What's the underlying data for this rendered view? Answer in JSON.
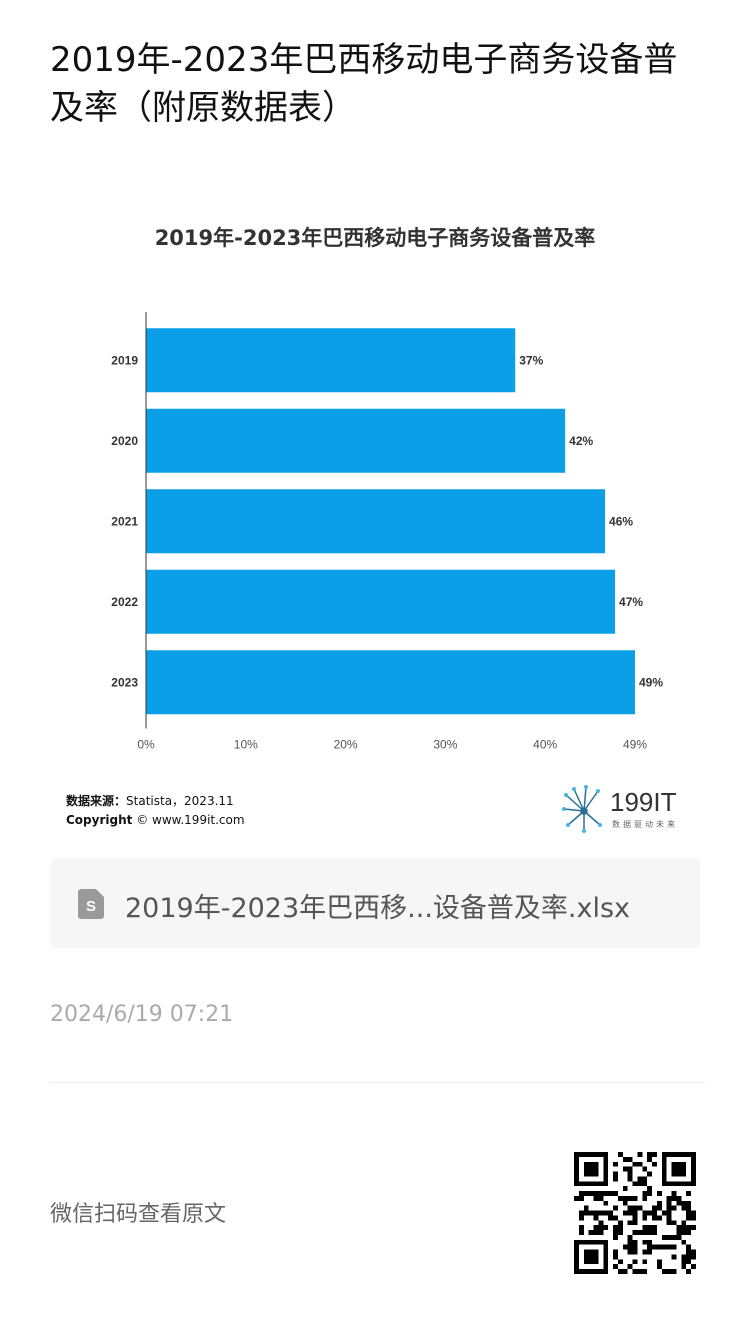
{
  "page": {
    "title": "2019年-2023年巴西移动电子商务设备普及率（附原数据表）"
  },
  "chart_data": {
    "type": "bar",
    "orientation": "horizontal",
    "title": "2019年-2023年巴西移动电子商务设备普及率",
    "categories": [
      "2019",
      "2020",
      "2021",
      "2022",
      "2023"
    ],
    "values": [
      37,
      42,
      46,
      47,
      49
    ],
    "value_labels": [
      "37%",
      "42%",
      "46%",
      "47%",
      "49%"
    ],
    "x_ticks": [
      "0%",
      "10%",
      "20%",
      "30%",
      "40%",
      "49%"
    ],
    "x_tick_values": [
      0,
      10,
      20,
      30,
      40,
      49
    ],
    "xlim": [
      0,
      49
    ],
    "bar_color": "#0a9fe6",
    "grid": false
  },
  "source": {
    "label": "数据来源：",
    "text": "Statista，2023.11",
    "copyright_label": "Copyright",
    "copyright_text": "© www.199it.com"
  },
  "logo": {
    "name": "199IT",
    "tagline": "数据驱动未来"
  },
  "file": {
    "icon": "spreadsheet-file-icon",
    "name": "2019年-2023年巴西移...设备普及率.xlsx"
  },
  "meta": {
    "date": "2024/6/19 07:21"
  },
  "footer": {
    "wechat_text": "微信扫码查看原文",
    "qr_icon": "qr-code-icon"
  }
}
